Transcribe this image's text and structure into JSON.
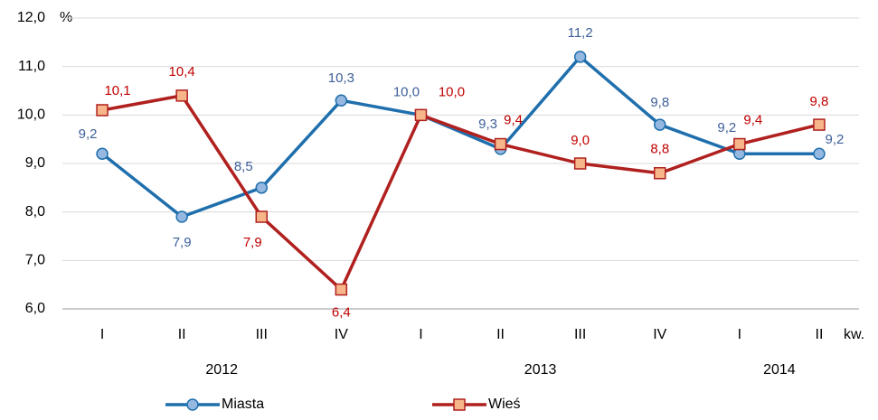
{
  "chart_data": {
    "type": "line",
    "y_axis_label": "%",
    "x_axis_label": "kw.",
    "categories": [
      "I",
      "II",
      "III",
      "IV",
      "I",
      "II",
      "III",
      "IV",
      "I",
      "II"
    ],
    "x_groups": [
      "2012",
      "2012",
      "2012",
      "2012",
      "2013",
      "2013",
      "2013",
      "2013",
      "2014",
      "2014"
    ],
    "series": [
      {
        "name": "Miasta",
        "color": "#1f6fad",
        "marker": "circle",
        "marker_fill": "#95b8e0",
        "label_color": "#3d5f99",
        "values": [
          9.2,
          7.9,
          8.5,
          10.3,
          10.0,
          9.3,
          11.2,
          9.8,
          9.2,
          9.2
        ],
        "value_labels": [
          "9,2",
          "7,9",
          "8,5",
          "10,3",
          "10,0",
          "9,3",
          "11,2",
          "9,8",
          "9,2",
          "9,2"
        ]
      },
      {
        "name": "Wieś",
        "color": "#b0201e",
        "marker": "square",
        "marker_fill": "#f6b68a",
        "label_color": "#c00000",
        "values": [
          10.1,
          10.4,
          7.9,
          6.4,
          10.0,
          9.4,
          9.0,
          8.8,
          9.4,
          9.8
        ],
        "value_labels": [
          "10,1",
          "10,4",
          "7,9",
          "6,4",
          "10,0",
          "9,4",
          "9,0",
          "8,8",
          "9,4",
          "9,8"
        ]
      }
    ],
    "ylim": [
      6,
      12
    ],
    "yticks": [
      {
        "value": 6,
        "label": "6,0"
      },
      {
        "value": 7,
        "label": "7,0"
      },
      {
        "value": 8,
        "label": "8,0"
      },
      {
        "value": 9,
        "label": "9,0"
      },
      {
        "value": 10,
        "label": "10,0"
      },
      {
        "value": 11,
        "label": "11,0"
      },
      {
        "value": 12,
        "label": "12,0"
      }
    ],
    "grid": true,
    "legend": "bottom"
  }
}
